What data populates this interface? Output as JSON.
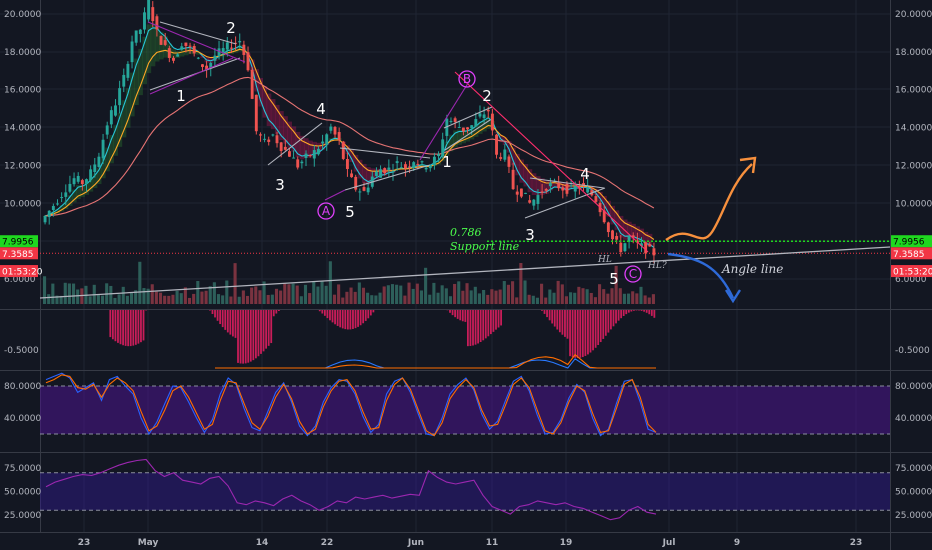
{
  "chart_data": [
    {
      "type": "candlestick",
      "panel": "price",
      "y_ticks": [
        "20.0000",
        "18.0000",
        "16.0000",
        "14.0000",
        "12.0000",
        "10.0000",
        "8.0000",
        "6.0000"
      ],
      "y_tick_values": [
        20,
        18,
        16,
        14,
        12,
        10,
        8,
        6
      ],
      "ylim": [
        5.3,
        20.7
      ],
      "x_ticks": [
        "23",
        "May",
        "14",
        "22",
        "Jun",
        "11",
        "19",
        "Jul",
        "9",
        "23"
      ],
      "price_path": [
        [
          "Apr 16",
          9.0
        ],
        [
          "Apr 17",
          9.6
        ],
        [
          "Apr 18",
          10.2
        ],
        [
          "Apr 19",
          10.8
        ],
        [
          "Apr 20",
          11.3
        ],
        [
          "Apr 21",
          11.1
        ],
        [
          "Apr 22",
          11.6
        ],
        [
          "Apr 23",
          12.6
        ],
        [
          "Apr 24",
          14.2
        ],
        [
          "Apr 25",
          15.3
        ],
        [
          "Apr 26",
          16.6
        ],
        [
          "Apr 27",
          18.6
        ],
        [
          "Apr 28",
          19.2
        ],
        [
          "Apr 29",
          20.6
        ],
        [
          "Apr 30",
          19.0
        ],
        [
          "May 1",
          18.2
        ],
        [
          "May 2",
          17.6
        ],
        [
          "May 3",
          18.5
        ],
        [
          "May 4",
          18.2
        ],
        [
          "May 5",
          17.5
        ],
        [
          "May 6",
          17.1
        ],
        [
          "May 7",
          17.8
        ],
        [
          "May 8",
          18.1
        ],
        [
          "May 9",
          18.4
        ],
        [
          "May 10",
          18.6
        ],
        [
          "May 11",
          17.2
        ],
        [
          "May 12",
          13.8
        ],
        [
          "May 13",
          13.2
        ],
        [
          "May 14",
          13.6
        ],
        [
          "May 15",
          13.0
        ],
        [
          "May 16",
          12.6
        ],
        [
          "May 17",
          12.0
        ],
        [
          "May 18",
          12.4
        ],
        [
          "May 19",
          12.7
        ],
        [
          "May 20",
          13.2
        ],
        [
          "May 21",
          14.0
        ],
        [
          "May 22",
          13.2
        ],
        [
          "May 23",
          11.6
        ],
        [
          "May 24",
          10.8
        ],
        [
          "May 25",
          10.6
        ],
        [
          "May 26",
          11.4
        ],
        [
          "May 27",
          11.8
        ],
        [
          "May 28",
          11.8
        ],
        [
          "May 29",
          12.1
        ],
        [
          "May 30",
          11.9
        ],
        [
          "May 31",
          12.3
        ],
        [
          "Jun 1",
          12.0
        ],
        [
          "Jun 2",
          12.1
        ],
        [
          "Jun 3",
          12.5
        ],
        [
          "Jun 4",
          14.5
        ],
        [
          "Jun 5",
          14.2
        ],
        [
          "Jun 6",
          13.9
        ],
        [
          "Jun 7",
          14.1
        ],
        [
          "Jun 8",
          14.6
        ],
        [
          "Jun 9",
          14.9
        ],
        [
          "Jun 10",
          12.5
        ],
        [
          "Jun 11",
          12.6
        ],
        [
          "Jun 12",
          10.8
        ],
        [
          "Jun 13",
          10.6
        ],
        [
          "Jun 14",
          10.0
        ],
        [
          "Jun 15",
          10.4
        ],
        [
          "Jun 16",
          10.9
        ],
        [
          "Jun 17",
          11.0
        ],
        [
          "Jun 18",
          10.8
        ],
        [
          "Jun 19",
          10.7
        ],
        [
          "Jun 20",
          10.9
        ],
        [
          "Jun 21",
          10.7
        ],
        [
          "Jun 22",
          10.2
        ],
        [
          "Jun 23",
          9.2
        ],
        [
          "Jun 24",
          8.1
        ],
        [
          "Jun 25",
          7.6
        ],
        [
          "Jun 26",
          8.2
        ],
        [
          "Jun 27",
          7.8
        ],
        [
          "Jun 28",
          7.6
        ],
        [
          "Jun 29",
          7.36
        ]
      ],
      "price_badges": [
        {
          "value": 7.9956,
          "text": "7.9956",
          "bg": "#1fd81f",
          "fg": "#000000"
        },
        {
          "value": 7.3585,
          "text": "7.3585",
          "bg": "#f23645",
          "fg": "#ffffff"
        },
        {
          "value": 6.42,
          "text": "01:53:20",
          "bg": "#f23645",
          "fg": "#ffffff"
        }
      ],
      "fib_level": {
        "value": 7.9956,
        "label": "0.786",
        "sublabel": "Support line",
        "color": "#1fd81f"
      },
      "waves": [
        "1",
        "2",
        "3",
        "4",
        "5",
        "A",
        "1",
        "2",
        "3",
        "4",
        "5",
        "B",
        "C",
        "3",
        "4",
        "5"
      ],
      "annotations": {
        "angle_line": "Angle line",
        "hl": "HL",
        "hl_q": "HL?"
      },
      "bands": {
        "upper": "#c2185b",
        "lower": "#2e7d32"
      }
    },
    {
      "type": "line",
      "panel": "macd",
      "y_ticks": [
        "-0.5000"
      ],
      "y_tick_values": [
        -0.5
      ]
    },
    {
      "type": "line",
      "panel": "stochastic-rsi",
      "y_ticks": [
        "80.0000",
        "40.0000"
      ],
      "y_tick_values": [
        80,
        40
      ],
      "ylim": [
        0,
        100
      ],
      "band": [
        20,
        80
      ],
      "band_color": "#4a148c",
      "series": [
        {
          "color": "#2962ff",
          "values": [
            88,
            92,
            96,
            90,
            72,
            78,
            84,
            62,
            88,
            92,
            80,
            70,
            40,
            20,
            35,
            58,
            80,
            78,
            60,
            40,
            22,
            38,
            70,
            90,
            82,
            52,
            28,
            24,
            48,
            72,
            84,
            60,
            30,
            18,
            30,
            60,
            78,
            88,
            86,
            70,
            42,
            22,
            32,
            70,
            86,
            90,
            72,
            45,
            20,
            18,
            40,
            70,
            82,
            90,
            75,
            45,
            26,
            36,
            62,
            86,
            92,
            74,
            44,
            20,
            22,
            38,
            65,
            82,
            72,
            40,
            18,
            26,
            58,
            86,
            88,
            60,
            26,
            22
          ]
        },
        {
          "color": "#ff6d00",
          "values": [
            84,
            88,
            94,
            92,
            78,
            76,
            82,
            66,
            82,
            90,
            84,
            74,
            48,
            24,
            30,
            50,
            74,
            80,
            66,
            46,
            26,
            32,
            62,
            86,
            84,
            58,
            34,
            26,
            42,
            66,
            82,
            64,
            36,
            20,
            26,
            54,
            74,
            86,
            88,
            74,
            48,
            26,
            28,
            62,
            82,
            90,
            76,
            50,
            24,
            18,
            34,
            64,
            78,
            88,
            78,
            50,
            30,
            32,
            56,
            82,
            90,
            78,
            50,
            24,
            20,
            34,
            60,
            80,
            74,
            46,
            22,
            24,
            52,
            82,
            88,
            66,
            32,
            22
          ]
        }
      ]
    },
    {
      "type": "line",
      "panel": "rsi",
      "y_ticks": [
        "75.0000",
        "50.0000",
        "25.0000"
      ],
      "y_tick_values": [
        75,
        50,
        25
      ],
      "ylim": [
        15,
        88
      ],
      "band": [
        30,
        70
      ],
      "band_color": "#311b92",
      "series": [
        {
          "color": "#9c27b0",
          "values": [
            55,
            60,
            63,
            66,
            68,
            67,
            70,
            74,
            78,
            81,
            83,
            84,
            72,
            66,
            70,
            62,
            60,
            58,
            64,
            66,
            56,
            38,
            36,
            40,
            38,
            35,
            42,
            46,
            40,
            36,
            30,
            34,
            40,
            38,
            44,
            42,
            44,
            46,
            43,
            45,
            47,
            46,
            72,
            65,
            60,
            58,
            60,
            62,
            46,
            34,
            30,
            26,
            34,
            36,
            40,
            38,
            36,
            38,
            34,
            32,
            28,
            24,
            20,
            22,
            30,
            34,
            28,
            26
          ]
        }
      ]
    }
  ]
}
